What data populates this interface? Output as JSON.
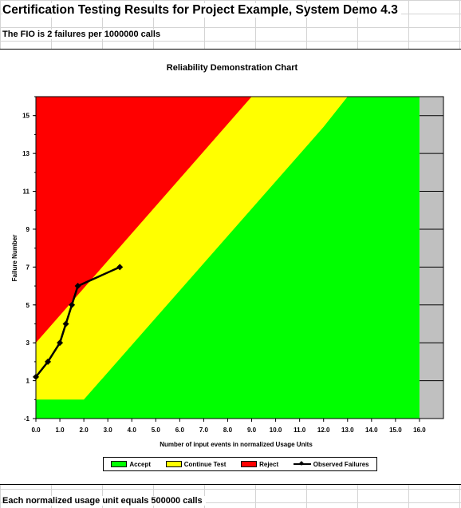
{
  "sheet": {
    "title": "Certification Testing Results for Project Example, System Demo 4.3",
    "fio_text": "The FIO is 2 failures per 1000000 calls",
    "footer_text": "Each normalized usage unit equals 500000 calls"
  },
  "chart_data": {
    "type": "area",
    "title": "Reliability Demonstration Chart",
    "xlabel": "Number of input events in normalized Usage Units",
    "ylabel": "Failure Number",
    "xlim": [
      0,
      17
    ],
    "ylim": [
      -1,
      16
    ],
    "x_ticks": [
      "0.0",
      "1.0",
      "2.0",
      "3.0",
      "4.0",
      "5.0",
      "6.0",
      "7.0",
      "8.0",
      "9.0",
      "10.0",
      "11.0",
      "12.0",
      "13.0",
      "14.0",
      "15.0",
      "16.0"
    ],
    "y_ticks": [
      "-1",
      "1",
      "3",
      "5",
      "7",
      "9",
      "11",
      "13",
      "15"
    ],
    "regions": [
      {
        "name": "Accept",
        "color": "#00ff00"
      },
      {
        "name": "Continue Test",
        "color": "#ffff00"
      },
      {
        "name": "Reject",
        "color": "#ff0000"
      }
    ],
    "reject_boundary": [
      [
        0,
        3.0
      ],
      [
        9.0,
        16.0
      ]
    ],
    "accept_boundary": [
      [
        0,
        0
      ],
      [
        2.0,
        0
      ],
      [
        12.0,
        14.4
      ],
      [
        13.0,
        16.0
      ]
    ],
    "grey_band_x": [
      16.0,
      17.0
    ],
    "series": [
      {
        "name": "Observed Failures",
        "color": "#000000",
        "x": [
          0.0,
          0.5,
          1.0,
          1.25,
          1.5,
          1.75,
          3.5
        ],
        "y": [
          1.2,
          2.0,
          3.0,
          4.0,
          5.0,
          6.0,
          7.0
        ]
      }
    ],
    "legend_position": "bottom",
    "grid": false
  }
}
